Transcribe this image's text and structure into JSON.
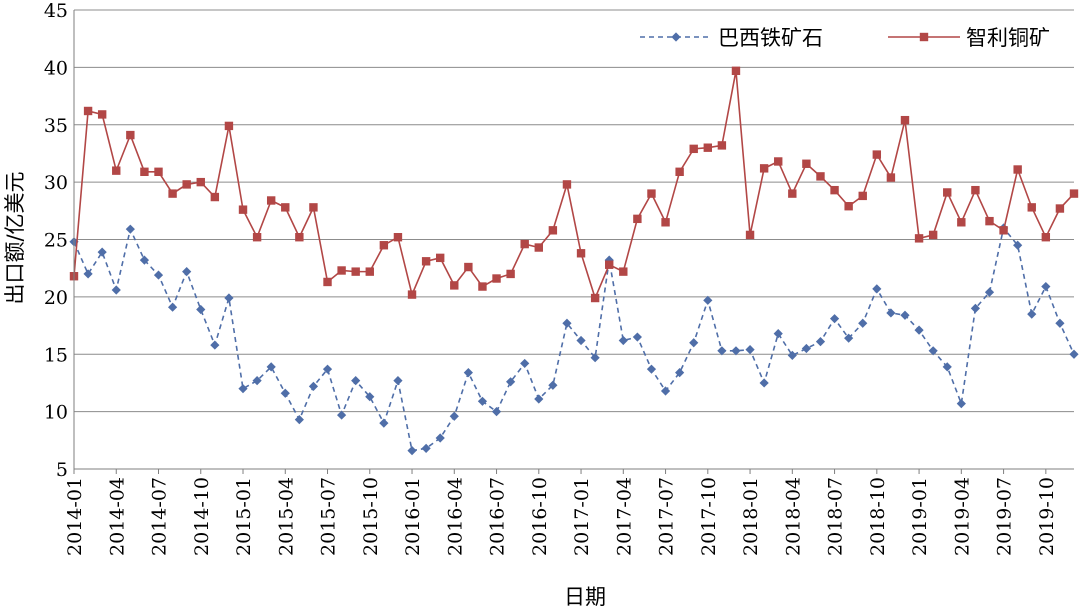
{
  "chart_data": {
    "type": "line",
    "xlabel": "日期",
    "ylabel": "出口额/亿美元",
    "ylim": [
      5,
      45
    ],
    "yticks": [
      5,
      10,
      15,
      20,
      25,
      30,
      35,
      40,
      45
    ],
    "xticks": [
      "2014-01",
      "2014-04",
      "2014-07",
      "2014-10",
      "2015-01",
      "2015-04",
      "2015-07",
      "2015-10",
      "2016-01",
      "2016-04",
      "2016-07",
      "2016-10",
      "2017-01",
      "2017-04",
      "2017-07",
      "2017-10",
      "2018-01",
      "2018-04",
      "2018-07",
      "2018-10",
      "2019-01",
      "2019-04",
      "2019-07",
      "2019-10"
    ],
    "grid": true,
    "legend_position": "top-right",
    "x_start": "2014-01",
    "series": [
      {
        "name": "巴西铁矿石",
        "color": "#4F6EA8",
        "style": "dashed",
        "marker": "diamond",
        "values": [
          24.8,
          22.0,
          23.9,
          20.6,
          25.9,
          23.2,
          21.9,
          19.1,
          22.2,
          18.9,
          15.8,
          19.9,
          12.0,
          12.7,
          13.9,
          11.6,
          9.3,
          12.2,
          13.7,
          9.7,
          12.7,
          11.3,
          9.0,
          12.7,
          6.6,
          6.8,
          7.7,
          9.6,
          13.4,
          10.9,
          10.0,
          12.6,
          14.2,
          11.1,
          12.3,
          17.7,
          16.2,
          14.7,
          23.2,
          16.2,
          16.5,
          13.7,
          11.8,
          13.4,
          16.0,
          19.7,
          15.3,
          15.3,
          15.4,
          12.5,
          16.8,
          14.9,
          15.5,
          16.1,
          18.1,
          16.4,
          17.7,
          20.7,
          18.6,
          18.4,
          17.1,
          15.3,
          13.9,
          10.7,
          19.0,
          20.4,
          26.0,
          24.5,
          18.5,
          20.9,
          17.7,
          15.0
        ]
      },
      {
        "name": "智利铜矿",
        "color": "#B24746",
        "style": "solid",
        "marker": "square",
        "values": [
          21.8,
          36.2,
          35.9,
          31.0,
          34.1,
          30.9,
          30.9,
          29.0,
          29.8,
          30.0,
          28.7,
          34.9,
          27.6,
          25.2,
          28.4,
          27.8,
          25.2,
          27.8,
          21.3,
          22.3,
          22.2,
          22.2,
          24.5,
          25.2,
          20.2,
          23.1,
          23.4,
          21.0,
          22.6,
          20.9,
          21.6,
          22.0,
          24.6,
          24.3,
          25.8,
          29.8,
          23.8,
          19.9,
          22.8,
          22.2,
          26.8,
          29.0,
          26.5,
          30.9,
          32.9,
          33.0,
          33.2,
          39.7,
          25.4,
          31.2,
          31.8,
          29.0,
          31.6,
          30.5,
          29.3,
          27.9,
          28.8,
          32.4,
          30.4,
          35.4,
          25.1,
          25.4,
          29.1,
          26.5,
          29.3,
          26.6,
          25.8,
          31.1,
          27.8,
          25.2,
          27.7,
          29.0
        ]
      }
    ]
  }
}
